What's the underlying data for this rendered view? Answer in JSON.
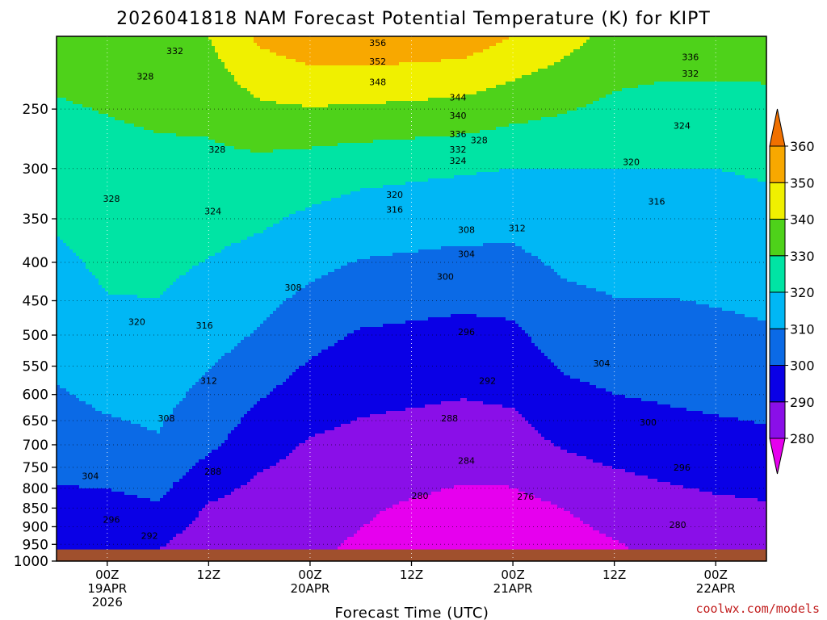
{
  "title": "2026041818 NAM Forecast Potential Temperature (K) for KIPT",
  "credit": "coolwx.com/models",
  "chart_data": {
    "type": "heatmap",
    "title": "2026041818 NAM Forecast Potential Temperature (K) for KIPT",
    "xlabel": "Forecast Time (UTC)",
    "ylabel": "",
    "x_ticks": [
      {
        "hour": 6,
        "lines": [
          "00Z",
          "19APR",
          "2026"
        ]
      },
      {
        "hour": 18,
        "lines": [
          "12Z"
        ]
      },
      {
        "hour": 30,
        "lines": [
          "00Z",
          "20APR"
        ]
      },
      {
        "hour": 42,
        "lines": [
          "12Z"
        ]
      },
      {
        "hour": 54,
        "lines": [
          "00Z",
          "21APR"
        ]
      },
      {
        "hour": 66,
        "lines": [
          "12Z"
        ]
      },
      {
        "hour": 78,
        "lines": [
          "00Z",
          "22APR"
        ]
      }
    ],
    "xlim": [
      0,
      84
    ],
    "y_ticks": [
      250,
      300,
      350,
      400,
      450,
      500,
      550,
      600,
      650,
      700,
      750,
      800,
      850,
      900,
      950,
      1000
    ],
    "ylim": [
      200,
      1000
    ],
    "y_scale": "log",
    "grid": true,
    "ground_pressure": 965,
    "colorbar": {
      "ticks": [
        280,
        290,
        300,
        310,
        320,
        330,
        340,
        350,
        360
      ],
      "range": [
        280,
        360
      ],
      "extend": "both"
    },
    "color_levels": [
      {
        "min": 270,
        "max": 280,
        "color": "#e600ee"
      },
      {
        "min": 280,
        "max": 290,
        "color": "#8a0fe8"
      },
      {
        "min": 290,
        "max": 300,
        "color": "#0a00e6"
      },
      {
        "min": 300,
        "max": 310,
        "color": "#0b6ae6"
      },
      {
        "min": 310,
        "max": 320,
        "color": "#00b7f5"
      },
      {
        "min": 320,
        "max": 330,
        "color": "#00e4a4"
      },
      {
        "min": 330,
        "max": 340,
        "color": "#4ed21a"
      },
      {
        "min": 340,
        "max": 350,
        "color": "#f0f000"
      },
      {
        "min": 350,
        "max": 360,
        "color": "#f8a800"
      },
      {
        "min": 360,
        "max": 380,
        "color": "#f07000"
      }
    ],
    "theta_profiles": [
      {
        "hour": 0,
        "values": [
          {
            "p": 200,
            "t": 335
          },
          {
            "p": 300,
            "t": 324
          },
          {
            "p": 500,
            "t": 314
          },
          {
            "p": 700,
            "t": 305
          },
          {
            "p": 850,
            "t": 297
          },
          {
            "p": 965,
            "t": 292
          }
        ]
      },
      {
        "hour": 6,
        "values": [
          {
            "p": 200,
            "t": 336
          },
          {
            "p": 300,
            "t": 326
          },
          {
            "p": 500,
            "t": 318
          },
          {
            "p": 700,
            "t": 307
          },
          {
            "p": 850,
            "t": 297
          },
          {
            "p": 965,
            "t": 291
          }
        ]
      },
      {
        "hour": 12,
        "values": [
          {
            "p": 200,
            "t": 338
          },
          {
            "p": 300,
            "t": 327
          },
          {
            "p": 500,
            "t": 318
          },
          {
            "p": 700,
            "t": 309
          },
          {
            "p": 850,
            "t": 299
          },
          {
            "p": 965,
            "t": 290
          }
        ]
      },
      {
        "hour": 18,
        "values": [
          {
            "p": 200,
            "t": 340
          },
          {
            "p": 300,
            "t": 327
          },
          {
            "p": 500,
            "t": 314
          },
          {
            "p": 700,
            "t": 302
          },
          {
            "p": 850,
            "t": 289
          },
          {
            "p": 965,
            "t": 283
          }
        ]
      },
      {
        "hour": 24,
        "values": [
          {
            "p": 200,
            "t": 352
          },
          {
            "p": 300,
            "t": 327
          },
          {
            "p": 500,
            "t": 309
          },
          {
            "p": 700,
            "t": 294
          },
          {
            "p": 850,
            "t": 285
          },
          {
            "p": 965,
            "t": 281
          }
        ]
      },
      {
        "hour": 30,
        "values": [
          {
            "p": 200,
            "t": 357
          },
          {
            "p": 300,
            "t": 325
          },
          {
            "p": 500,
            "t": 303
          },
          {
            "p": 700,
            "t": 289
          },
          {
            "p": 850,
            "t": 283
          },
          {
            "p": 965,
            "t": 281
          }
        ]
      },
      {
        "hour": 36,
        "values": [
          {
            "p": 200,
            "t": 358
          },
          {
            "p": 300,
            "t": 323
          },
          {
            "p": 500,
            "t": 299
          },
          {
            "p": 700,
            "t": 287
          },
          {
            "p": 850,
            "t": 281
          },
          {
            "p": 965,
            "t": 279
          }
        ]
      },
      {
        "hour": 42,
        "values": [
          {
            "p": 200,
            "t": 357
          },
          {
            "p": 300,
            "t": 322
          },
          {
            "p": 500,
            "t": 298
          },
          {
            "p": 700,
            "t": 286
          },
          {
            "p": 850,
            "t": 279
          },
          {
            "p": 965,
            "t": 277
          }
        ]
      },
      {
        "hour": 48,
        "values": [
          {
            "p": 200,
            "t": 356
          },
          {
            "p": 300,
            "t": 321
          },
          {
            "p": 500,
            "t": 297
          },
          {
            "p": 700,
            "t": 285
          },
          {
            "p": 850,
            "t": 277
          },
          {
            "p": 965,
            "t": 276
          }
        ]
      },
      {
        "hour": 54,
        "values": [
          {
            "p": 200,
            "t": 350
          },
          {
            "p": 300,
            "t": 320
          },
          {
            "p": 500,
            "t": 298
          },
          {
            "p": 700,
            "t": 286
          },
          {
            "p": 850,
            "t": 277
          },
          {
            "p": 965,
            "t": 276
          }
        ]
      },
      {
        "hour": 60,
        "values": [
          {
            "p": 200,
            "t": 344
          },
          {
            "p": 300,
            "t": 320
          },
          {
            "p": 500,
            "t": 305
          },
          {
            "p": 700,
            "t": 291
          },
          {
            "p": 850,
            "t": 280
          },
          {
            "p": 965,
            "t": 277
          }
        ]
      },
      {
        "hour": 66,
        "values": [
          {
            "p": 200,
            "t": 337
          },
          {
            "p": 300,
            "t": 320
          },
          {
            "p": 500,
            "t": 307
          },
          {
            "p": 700,
            "t": 294
          },
          {
            "p": 850,
            "t": 283
          },
          {
            "p": 965,
            "t": 279
          }
        ]
      },
      {
        "hour": 72,
        "values": [
          {
            "p": 200,
            "t": 335
          },
          {
            "p": 300,
            "t": 320
          },
          {
            "p": 500,
            "t": 307
          },
          {
            "p": 700,
            "t": 296
          },
          {
            "p": 850,
            "t": 286
          },
          {
            "p": 965,
            "t": 282
          }
        ]
      },
      {
        "hour": 78,
        "values": [
          {
            "p": 200,
            "t": 335
          },
          {
            "p": 300,
            "t": 320
          },
          {
            "p": 500,
            "t": 308
          },
          {
            "p": 700,
            "t": 297
          },
          {
            "p": 850,
            "t": 288
          },
          {
            "p": 965,
            "t": 284
          }
        ]
      },
      {
        "hour": 84,
        "values": [
          {
            "p": 200,
            "t": 335
          },
          {
            "p": 300,
            "t": 321
          },
          {
            "p": 500,
            "t": 309
          },
          {
            "p": 700,
            "t": 298
          },
          {
            "p": 850,
            "t": 289
          },
          {
            "p": 965,
            "t": 285
          }
        ]
      }
    ],
    "contour_labels": [
      {
        "hour": 14.0,
        "p": 209,
        "value": "332"
      },
      {
        "hour": 10.5,
        "p": 226,
        "value": "328"
      },
      {
        "hour": 19.0,
        "p": 283,
        "value": "328"
      },
      {
        "hour": 6.5,
        "p": 329,
        "value": "328"
      },
      {
        "hour": 18.5,
        "p": 342,
        "value": "324"
      },
      {
        "hour": 9.5,
        "p": 480,
        "value": "320"
      },
      {
        "hour": 17.5,
        "p": 485,
        "value": "316"
      },
      {
        "hour": 18.0,
        "p": 575,
        "value": "312"
      },
      {
        "hour": 13.0,
        "p": 645,
        "value": "308"
      },
      {
        "hour": 4.0,
        "p": 770,
        "value": "304"
      },
      {
        "hour": 6.5,
        "p": 880,
        "value": "296"
      },
      {
        "hour": 11.0,
        "p": 925,
        "value": "292"
      },
      {
        "hour": 18.5,
        "p": 760,
        "value": "288"
      },
      {
        "hour": 28.0,
        "p": 432,
        "value": "308"
      },
      {
        "hour": 38.0,
        "p": 204,
        "value": "356"
      },
      {
        "hour": 38.0,
        "p": 216,
        "value": "352"
      },
      {
        "hour": 38.0,
        "p": 230,
        "value": "348"
      },
      {
        "hour": 47.5,
        "p": 241,
        "value": "344"
      },
      {
        "hour": 47.5,
        "p": 255,
        "value": "340"
      },
      {
        "hour": 47.5,
        "p": 270,
        "value": "336"
      },
      {
        "hour": 47.5,
        "p": 283,
        "value": "332"
      },
      {
        "hour": 50.0,
        "p": 275,
        "value": "328"
      },
      {
        "hour": 47.5,
        "p": 293,
        "value": "324"
      },
      {
        "hour": 40.0,
        "p": 325,
        "value": "320"
      },
      {
        "hour": 40.0,
        "p": 340,
        "value": "316"
      },
      {
        "hour": 48.5,
        "p": 362,
        "value": "308"
      },
      {
        "hour": 54.5,
        "p": 360,
        "value": "312"
      },
      {
        "hour": 48.5,
        "p": 390,
        "value": "304"
      },
      {
        "hour": 46.0,
        "p": 418,
        "value": "300"
      },
      {
        "hour": 48.5,
        "p": 495,
        "value": "296"
      },
      {
        "hour": 51.0,
        "p": 575,
        "value": "292"
      },
      {
        "hour": 46.5,
        "p": 645,
        "value": "288"
      },
      {
        "hour": 48.5,
        "p": 735,
        "value": "284"
      },
      {
        "hour": 43.0,
        "p": 818,
        "value": "280"
      },
      {
        "hour": 55.5,
        "p": 820,
        "value": "276"
      },
      {
        "hour": 75.0,
        "p": 213,
        "value": "336"
      },
      {
        "hour": 75.0,
        "p": 224,
        "value": "332"
      },
      {
        "hour": 74.0,
        "p": 263,
        "value": "324"
      },
      {
        "hour": 68.0,
        "p": 294,
        "value": "320"
      },
      {
        "hour": 71.0,
        "p": 332,
        "value": "316"
      },
      {
        "hour": 64.5,
        "p": 545,
        "value": "304"
      },
      {
        "hour": 70.0,
        "p": 653,
        "value": "300"
      },
      {
        "hour": 74.0,
        "p": 750,
        "value": "296"
      },
      {
        "hour": 73.5,
        "p": 895,
        "value": "280"
      }
    ]
  }
}
